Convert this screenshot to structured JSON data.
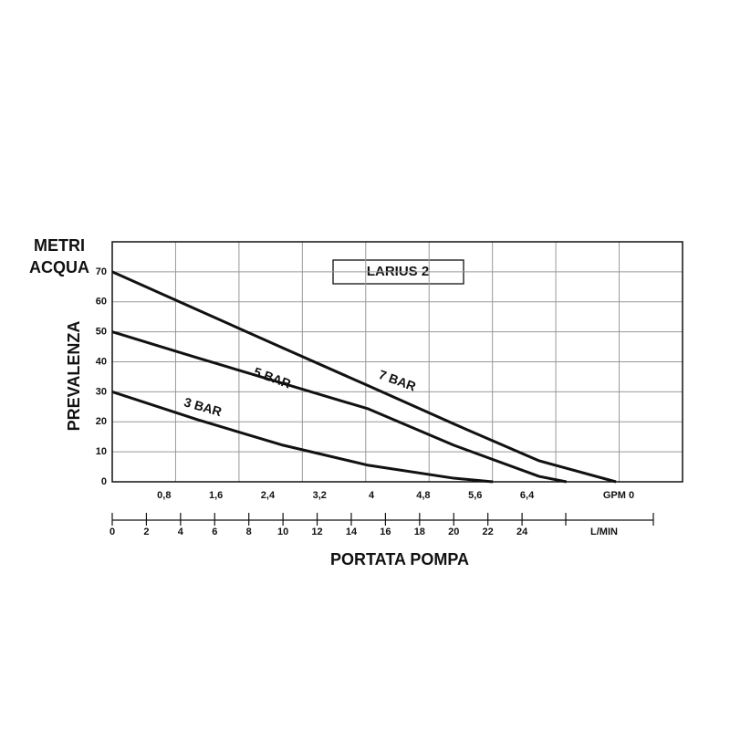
{
  "chart_data": {
    "type": "line",
    "title": "LARIUS 2",
    "y_unit_label": [
      "METRI",
      "ACQUA"
    ],
    "ylabel": "PREVALENZA",
    "xlabel": "PORTATA POMPA",
    "x_unit_label": "L/MIN",
    "x2_unit_label": "GPM 0",
    "ylim": [
      0,
      80
    ],
    "yticks": [
      0,
      10,
      20,
      30,
      40,
      50,
      60,
      70
    ],
    "xlim": [
      0,
      33.4
    ],
    "xticks": [
      0,
      2,
      4,
      6,
      8,
      10,
      12,
      14,
      16,
      18,
      20,
      22,
      24
    ],
    "x2lim": [
      0,
      8.8
    ],
    "x2ticks": [
      {
        "value": 0.8,
        "label": "0,8"
      },
      {
        "value": 1.6,
        "label": "1,6"
      },
      {
        "value": 2.4,
        "label": "2,4"
      },
      {
        "value": 3.2,
        "label": "3,2"
      },
      4,
      {
        "value": 4.8,
        "label": "4,8"
      },
      {
        "value": 5.6,
        "label": "5,6"
      },
      {
        "value": 6.4,
        "label": "6,4"
      }
    ],
    "grid": true,
    "series": [
      {
        "name": "3 BAR",
        "color": "#111111",
        "x": [
          0,
          5,
          10,
          15,
          20,
          22.3
        ],
        "values": [
          30,
          20.7,
          12.2,
          5.5,
          1.2,
          0
        ]
      },
      {
        "name": "5 BAR",
        "color": "#111111",
        "x": [
          0,
          5,
          10,
          15,
          20,
          25,
          26.6
        ],
        "values": [
          50,
          41.3,
          32.8,
          24.3,
          12.2,
          1.8,
          0
        ]
      },
      {
        "name": "7 BAR",
        "color": "#111111",
        "x": [
          0,
          5,
          10,
          15,
          20,
          25,
          29.5
        ],
        "values": [
          70,
          57.3,
          44.6,
          32,
          19.3,
          7,
          0
        ]
      }
    ]
  }
}
